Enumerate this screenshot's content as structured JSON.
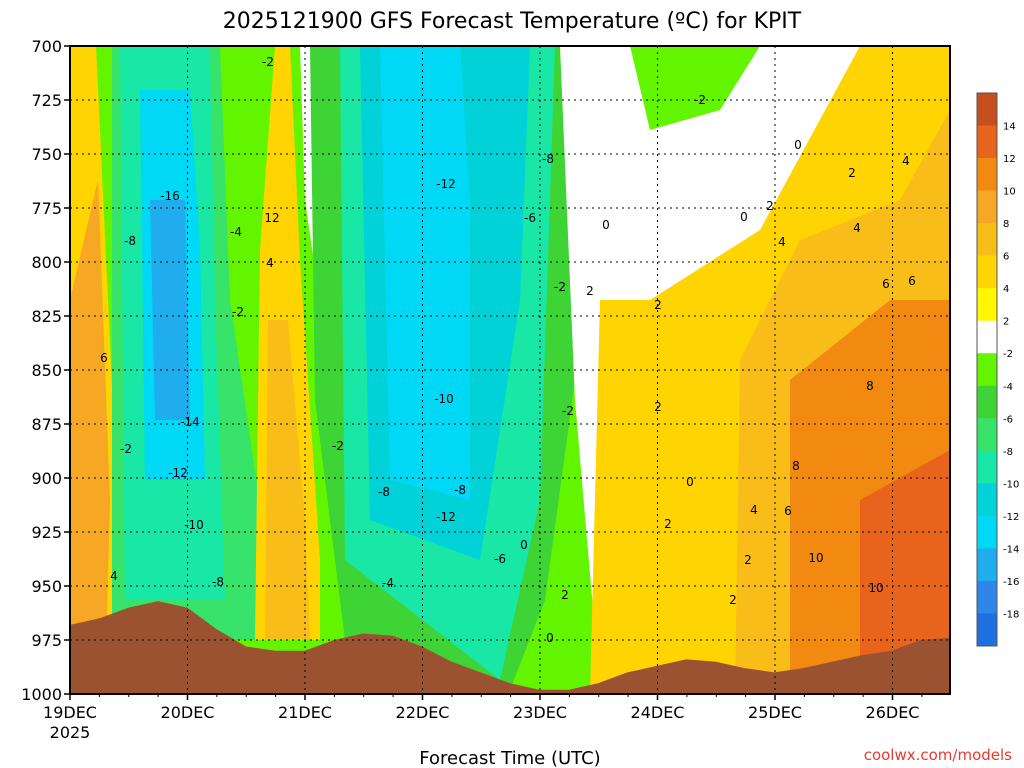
{
  "chart_data": {
    "type": "heatmap",
    "title": "2025121900 GFS Forecast Temperature (ºC) for KPIT",
    "xlabel": "Forecast Time (UTC)",
    "ylabel": "",
    "credit": "coolwx.com/models",
    "x_ticks": [
      "19DEC",
      "20DEC",
      "21DEC",
      "22DEC",
      "23DEC",
      "24DEC",
      "25DEC",
      "26DEC"
    ],
    "x_tick_sub": "2025",
    "y_ticks": [
      700,
      725,
      750,
      775,
      800,
      825,
      850,
      875,
      900,
      925,
      950,
      975,
      1000
    ],
    "ylim": [
      1000,
      700
    ],
    "xlim_days": [
      0,
      7.45
    ],
    "colorbar": {
      "labels": [
        "14",
        "12",
        "10",
        "8",
        "6",
        "4",
        "2",
        "-2",
        "-4",
        "-6",
        "-8",
        "-10",
        "-12",
        "-14",
        "-16",
        "-18"
      ],
      "colors": [
        "#c5501e",
        "#e8641d",
        "#f28a12",
        "#f6a723",
        "#f9bd19",
        "#ffd400",
        "#fff700",
        "#ffffff",
        "#63f500",
        "#3ed436",
        "#38e36a",
        "#18e7a6",
        "#00d2d8",
        "#00d9f5",
        "#20adee",
        "#2e87e8",
        "#1e6fe0"
      ]
    },
    "contour_labels": [
      "-2",
      "-2",
      "-2",
      "-2",
      "-4",
      "-4",
      "-6",
      "-6",
      "-8",
      "-8",
      "-8",
      "-8",
      "-8",
      "-10",
      "-10",
      "-12",
      "-12",
      "-12",
      "-14",
      "-16",
      "-2",
      "-2",
      "-2",
      "0",
      "0",
      "0",
      "0",
      "0",
      "0",
      "2",
      "2",
      "2",
      "2",
      "2",
      "2",
      "2",
      "2",
      "2",
      "4",
      "4",
      "4",
      "4",
      "4",
      "4",
      "6",
      "6",
      "6",
      "6",
      "8",
      "8",
      "10",
      "10",
      "12"
    ],
    "surface_pressure": [
      968,
      965,
      960,
      957,
      960,
      970,
      978,
      980,
      980,
      975,
      972,
      973,
      978,
      985,
      990,
      995,
      998,
      998,
      995,
      990,
      987,
      984,
      985,
      988,
      990,
      988,
      985,
      982,
      980,
      975,
      974
    ]
  }
}
